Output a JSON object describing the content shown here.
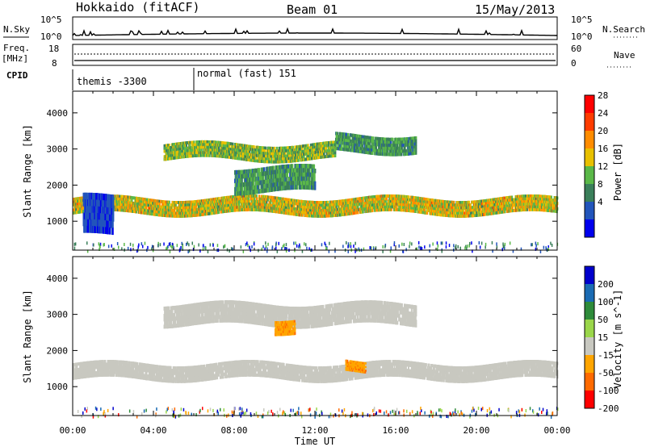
{
  "header": {
    "station": "Hokkaido (fitACF)",
    "beam": "Beam 01",
    "date": "15/May/2013"
  },
  "strip_labels": {
    "nsky": "N.Sky",
    "nsky_ticks": [
      "10^5",
      "10^0"
    ],
    "nsky_right_ticks": [
      "10^5",
      "10^0"
    ],
    "nsearch": "N.Search",
    "freq": "Freq.",
    "freq_unit": "[MHz]",
    "freq_ticks": [
      "18",
      "8"
    ],
    "nave_ticks": [
      "60",
      "0"
    ],
    "nave": "Nave",
    "cpid": "CPID"
  },
  "cpid_segments": [
    {
      "label": "themis -3300",
      "start_hour": 0
    },
    {
      "label": "normal (fast) 151",
      "start_hour": 6
    }
  ],
  "x_axis": {
    "label": "Time UT",
    "ticks": [
      "00:00",
      "04:00",
      "08:00",
      "12:00",
      "16:00",
      "20:00",
      "00:00"
    ]
  },
  "colors": {
    "power": [
      "#0000ee",
      "#2255bb",
      "#3a7f5a",
      "#5ab848",
      "#e8c000",
      "#ff8c00",
      "#ff3c00",
      "#ff0000"
    ],
    "velocity": [
      "#ff0000",
      "#ff6a00",
      "#ffa500",
      "#c8c8c0",
      "#9ad64a",
      "#2e8b3a",
      "#1a6bb3",
      "#0000cc"
    ],
    "ground_scatter": "#c8c8c0"
  },
  "chart_data": [
    {
      "type": "heatmap",
      "title": "Power",
      "ylabel": "Slant Range [km]",
      "y_ticks": [
        "1000",
        "2000",
        "3000",
        "4000"
      ],
      "ylim": [
        200,
        4600
      ],
      "xlim_hours": [
        0,
        24
      ],
      "colorbar": {
        "label": "Power [dB]",
        "ticks": [
          "28",
          "24",
          "20",
          "16",
          "12",
          "8",
          "4"
        ],
        "range": [
          0,
          30
        ]
      },
      "bands": [
        {
          "name": "",
          "hours": [
            0,
            24
          ],
          "range_km": [
            1200,
            1650
          ],
          "peak_db": 22
        },
        {
          "name": "",
          "hours": [
            0.5,
            2.0
          ],
          "range_km": [
            600,
            1700
          ],
          "peak_db": 6
        },
        {
          "name": "",
          "hours": [
            4.5,
            13
          ],
          "range_km": [
            2700,
            3150
          ],
          "peak_db": 18
        },
        {
          "name": "",
          "hours": [
            13,
            17
          ],
          "range_km": [
            2900,
            3400
          ],
          "peak_db": 14
        },
        {
          "name": "",
          "hours": [
            8,
            12
          ],
          "range_km": [
            1800,
            2500
          ],
          "peak_db": 14
        }
      ]
    },
    {
      "type": "heatmap",
      "title": "Velocity",
      "ylabel": "Slant Range [km]",
      "y_ticks": [
        "1000",
        "2000",
        "3000",
        "4000"
      ],
      "ylim": [
        200,
        4600
      ],
      "xlim_hours": [
        0,
        24
      ],
      "colorbar": {
        "label": "Velocity [m s^-1]",
        "ticks": [
          "200",
          "100",
          "50",
          "15",
          "-15",
          "-50",
          "-100",
          "-200"
        ],
        "range": [
          -250,
          250
        ]
      },
      "bands": [
        {
          "name": "",
          "hours": [
            0,
            24
          ],
          "range_km": [
            1200,
            1650
          ],
          "velocity": 0
        },
        {
          "name": "",
          "hours": [
            4.5,
            17
          ],
          "range_km": [
            2700,
            3300
          ],
          "velocity": 0
        },
        {
          "name": "",
          "hours": [
            10,
            11
          ],
          "range_km": [
            2500,
            2900
          ],
          "velocity": -60
        },
        {
          "name": "",
          "hours": [
            13.5,
            14.5
          ],
          "range_km": [
            1400,
            1700
          ],
          "velocity": -60
        }
      ]
    }
  ]
}
